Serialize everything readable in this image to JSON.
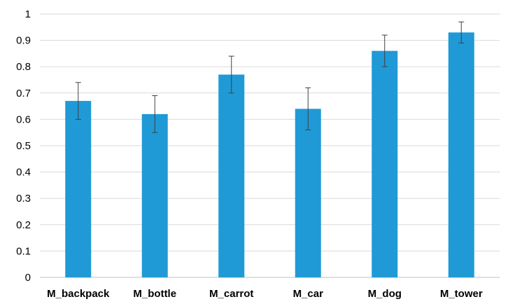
{
  "chart_data": {
    "type": "bar",
    "title": "",
    "xlabel": "",
    "ylabel": "",
    "categories": [
      "M_backpack",
      "M_bottle",
      "M_carrot",
      "M_car",
      "M_dog",
      "M_tower"
    ],
    "values": [
      0.67,
      0.62,
      0.77,
      0.64,
      0.86,
      0.93
    ],
    "error_low": [
      0.6,
      0.55,
      0.7,
      0.56,
      0.8,
      0.89
    ],
    "error_high": [
      0.74,
      0.69,
      0.84,
      0.72,
      0.92,
      0.97
    ],
    "ylim": [
      0,
      1
    ],
    "yticks": [
      "0",
      "0.1",
      "0.2",
      "0.3",
      "0.4",
      "0.5",
      "0.6",
      "0.7",
      "0.8",
      "0.9",
      "1"
    ],
    "grid": true,
    "legend": "none",
    "bar_color": "#1f9ad6",
    "grid_color": "#d9d9d9",
    "error_color": "#404040"
  }
}
